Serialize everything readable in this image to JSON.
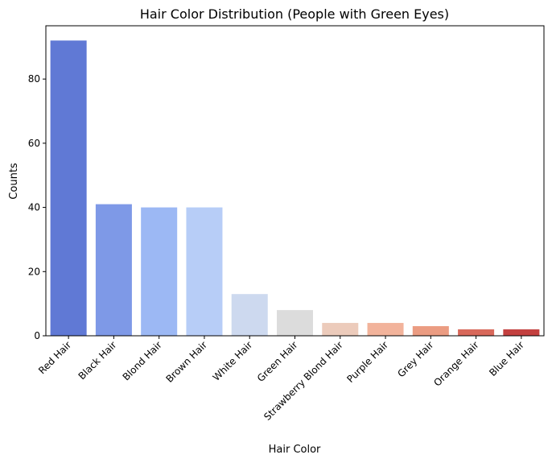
{
  "chart_data": {
    "type": "bar",
    "title": "Hair Color Distribution (People with Green Eyes)",
    "xlabel": "Hair Color",
    "ylabel": "Counts",
    "categories": [
      "Red Hair",
      "Black Hair",
      "Blond Hair",
      "Brown Hair",
      "White Hair",
      "Green Hair",
      "Strawberry Blond Hair",
      "Purple Hair",
      "Grey Hair",
      "Orange Hair",
      "Blue Hair"
    ],
    "values": [
      92,
      41,
      40,
      40,
      13,
      8,
      4,
      4,
      3,
      2,
      2
    ],
    "colors": [
      "#6079d5",
      "#7e99e7",
      "#9cb8f4",
      "#b7cdf7",
      "#cdd9ef",
      "#dcdcdc",
      "#eccbbb",
      "#f2b39b",
      "#eb9c82",
      "#d8685a",
      "#c3403f"
    ],
    "ylim": [
      0,
      96.6
    ],
    "yticks": [
      0,
      20,
      40,
      60,
      80
    ],
    "grid": false,
    "legend": "none"
  }
}
